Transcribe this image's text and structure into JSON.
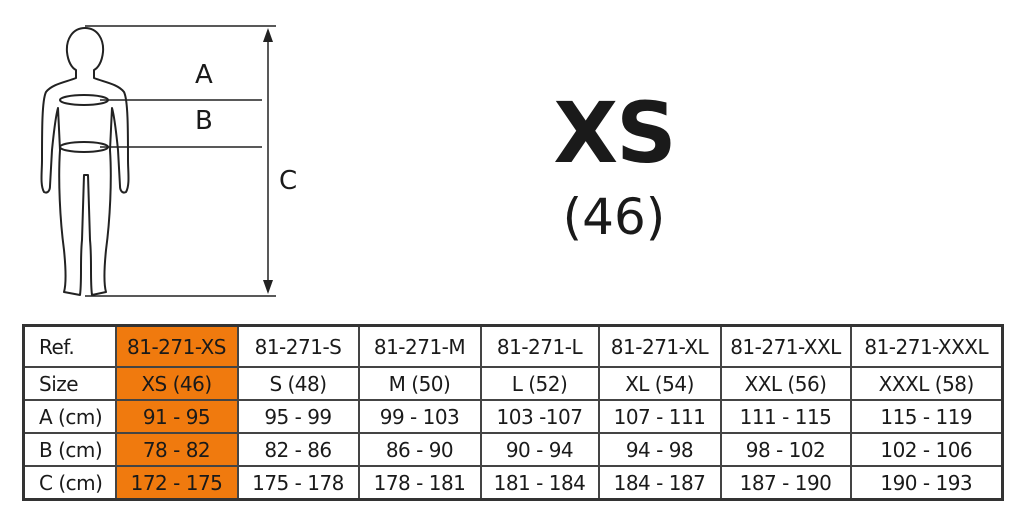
{
  "figure": {
    "labels": {
      "a": "A",
      "b": "B",
      "c": "C"
    }
  },
  "selected": {
    "size": "XS",
    "number": "(46)"
  },
  "colors": {
    "highlight": "#f07a0e"
  },
  "table": {
    "rows": [
      {
        "header": "Ref.",
        "cells": [
          "81-271-XS",
          "81-271-S",
          "81-271-M",
          "81-271-L",
          "81-271-XL",
          "81-271-XXL",
          "81-271-XXXL"
        ]
      },
      {
        "header": "Size",
        "cells": [
          "XS (46)",
          "S (48)",
          "M (50)",
          "L (52)",
          "XL (54)",
          "XXL (56)",
          "XXXL (58)"
        ]
      },
      {
        "header": "A (cm)",
        "cells": [
          "91 - 95",
          "95 - 99",
          "99 - 103",
          "103 -107",
          "107 - 111",
          "111 - 115",
          "115  - 119"
        ]
      },
      {
        "header": "B (cm)",
        "cells": [
          "78 - 82",
          "82 - 86",
          "86 - 90",
          "90 - 94",
          "94 - 98",
          "98 - 102",
          "102 - 106"
        ]
      },
      {
        "header": "C (cm)",
        "cells": [
          "172 - 175",
          "175 - 178",
          "178 - 181",
          "181 - 184",
          "184 - 187",
          "187 - 190",
          "190 - 193"
        ]
      }
    ]
  }
}
